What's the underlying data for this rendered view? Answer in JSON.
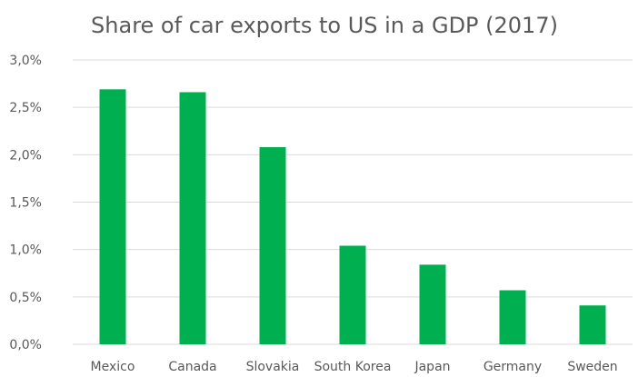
{
  "chart_data": {
    "type": "bar",
    "title": "Share of car exports to US in a GDP (2017)",
    "xlabel": "",
    "ylabel": "",
    "categories": [
      "Mexico",
      "Canada",
      "Slovakia",
      "South Korea",
      "Japan",
      "Germany",
      "Sweden"
    ],
    "values": [
      2.69,
      2.66,
      2.08,
      1.04,
      0.84,
      0.57,
      0.41
    ],
    "unit": "%",
    "ylim": [
      0,
      3.0
    ],
    "yticks": [
      0,
      0.5,
      1.0,
      1.5,
      2.0,
      2.5,
      3.0
    ],
    "ytick_labels": [
      "0,0%",
      "0,5%",
      "1,0%",
      "1,5%",
      "2,0%",
      "2,5%",
      "3,0%"
    ],
    "grid": true,
    "legend": "none",
    "bar_color": "#00b050"
  }
}
